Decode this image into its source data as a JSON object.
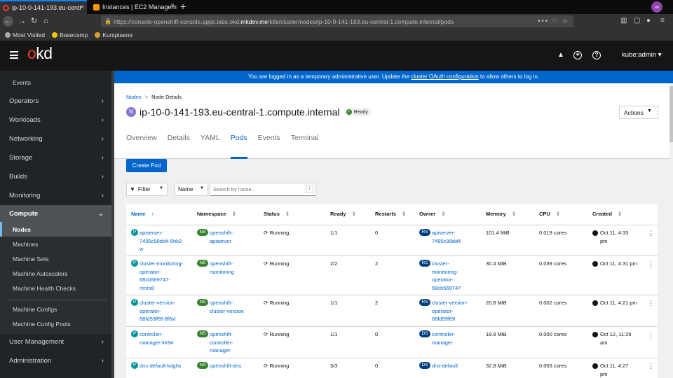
{
  "browser": {
    "tabs": [
      {
        "label": "ip-10-0-141-193.eu-centr",
        "active": true,
        "icon_color": "#ee0000"
      },
      {
        "label": "Instances | EC2 Managem",
        "active": false,
        "icon_color": "#f90"
      }
    ],
    "new_tab": "+",
    "url_prefix": "https://console-openshift-console.apps.labs.okd.",
    "url_domain": "mkdev.me",
    "url_suffix": "/k8s/cluster/nodes/ip-10-0-141-193.eu-central-1.compute.internal/pods",
    "url_end": "••• ♡ ☆",
    "bookmarks": [
      "Most Visited",
      "Basecamp",
      "Kursplaene"
    ],
    "ext_label": "∞"
  },
  "masthead": {
    "logo_o": "o",
    "logo_rest": "kd",
    "user": "kube:admin ▾",
    "bell": "🔔",
    "plus": "+",
    "help": "?"
  },
  "sidebar": {
    "items": [
      {
        "label": "Events",
        "sub": true
      },
      {
        "label": "Operators",
        "chevron": "›"
      },
      {
        "label": "Workloads",
        "chevron": "›"
      },
      {
        "label": "Networking",
        "chevron": "›"
      },
      {
        "label": "Storage",
        "chevron": "›"
      },
      {
        "label": "Builds",
        "chevron": "›"
      },
      {
        "label": "Monitoring",
        "chevron": "›"
      },
      {
        "label": "Compute",
        "chevron": "⌄"
      },
      {
        "label": "User Management",
        "chevron": "›"
      },
      {
        "label": "Administration",
        "chevron": "›"
      }
    ],
    "compute_sub": [
      "Nodes",
      "Machines",
      "Machine Sets",
      "Machine Autoscalers",
      "Machine Health Checks",
      "Machine Configs",
      "Machine Config Pools"
    ]
  },
  "banner": {
    "pre": "You are logged in as a temporary administrative user. Update the ",
    "link": "cluster OAuth configuration",
    "post": " to allow others to log in."
  },
  "breadcrumb": {
    "parent": "Nodes",
    "sep": ">",
    "current": "Node Details"
  },
  "page": {
    "badge": "N",
    "title": "ip-10-0-141-193.eu-central-1.compute.internal",
    "status": "Ready",
    "actions": "Actions",
    "tabs": [
      "Overview",
      "Details",
      "YAML",
      "Pods",
      "Events",
      "Terminal"
    ],
    "active_tab": "Pods"
  },
  "toolbar": {
    "create_pod": "Create Pod",
    "filter": "Filter",
    "name_select": "Name",
    "search_placeholder": "Search by name...",
    "slash": "/"
  },
  "table": {
    "columns": [
      "Name",
      "Namespace",
      "Status",
      "Ready",
      "Restarts",
      "Owner",
      "Memory",
      "CPU",
      "Created"
    ],
    "rows": [
      {
        "name": [
          "apiserver-",
          "7495c98dd4-5hk9",
          "w"
        ],
        "ns": [
          "openshift-",
          "apiserver"
        ],
        "status": "Running",
        "ready": "1/1",
        "restarts": "0",
        "owner_kind": "RS",
        "owner": [
          "apiserver-",
          "7495c98dd4"
        ],
        "memory": "101.4 MiB",
        "cpu": "0.019 cores",
        "created": [
          "Oct 11, 4:33",
          "pm"
        ]
      },
      {
        "name": [
          "cluster-monitoring-",
          "operator-",
          "68cb569747-",
          "nmrs8"
        ],
        "ns": [
          "openshift-",
          "monitoring"
        ],
        "status": "Running",
        "ready": "2/2",
        "restarts": "2",
        "owner_kind": "RS",
        "owner": [
          "cluster-",
          "monitoring-",
          "operator-",
          "68cb569747"
        ],
        "memory": "30.4 MiB",
        "cpu": "0.039 cores",
        "created": [
          "Oct 11, 4:31 pm"
        ]
      },
      {
        "name": [
          "cluster-version-",
          "operator-",
          "68fd59ff9f-8f6vl"
        ],
        "ns": [
          "openshift-",
          "cluster-version"
        ],
        "status": "Running",
        "ready": "1/1",
        "restarts": "2",
        "owner_kind": "RS",
        "owner": [
          "cluster-version-",
          "operator-",
          "68fd59ff9f"
        ],
        "memory": "20.8 MiB",
        "cpu": "0.002 cores",
        "created": [
          "Oct 11, 4:21 pm"
        ]
      },
      {
        "name": [
          "controller-",
          "manager-lrk94"
        ],
        "ns": [
          "openshift-",
          "controller-",
          "manager"
        ],
        "status": "Running",
        "ready": "1/1",
        "restarts": "0",
        "owner_kind": "DS",
        "owner": [
          "controller-",
          "manager"
        ],
        "memory": "18.9 MiB",
        "cpu": "0.000 cores",
        "created": [
          "Oct 12, 11:29",
          "am"
        ]
      },
      {
        "name": [
          "dns-default-kdghx"
        ],
        "ns": [
          "openshift-dns"
        ],
        "status": "Running",
        "ready": "3/3",
        "restarts": "0",
        "owner_kind": "DS",
        "owner": [
          "dns-default"
        ],
        "memory": "32.8 MiB",
        "cpu": "0.003 cores",
        "created": [
          "Oct 11, 4:27",
          "pm"
        ]
      }
    ]
  },
  "colors": {
    "accent": "#0066cc",
    "brand": "#ee3d24",
    "running_ok": "#3e8635"
  }
}
